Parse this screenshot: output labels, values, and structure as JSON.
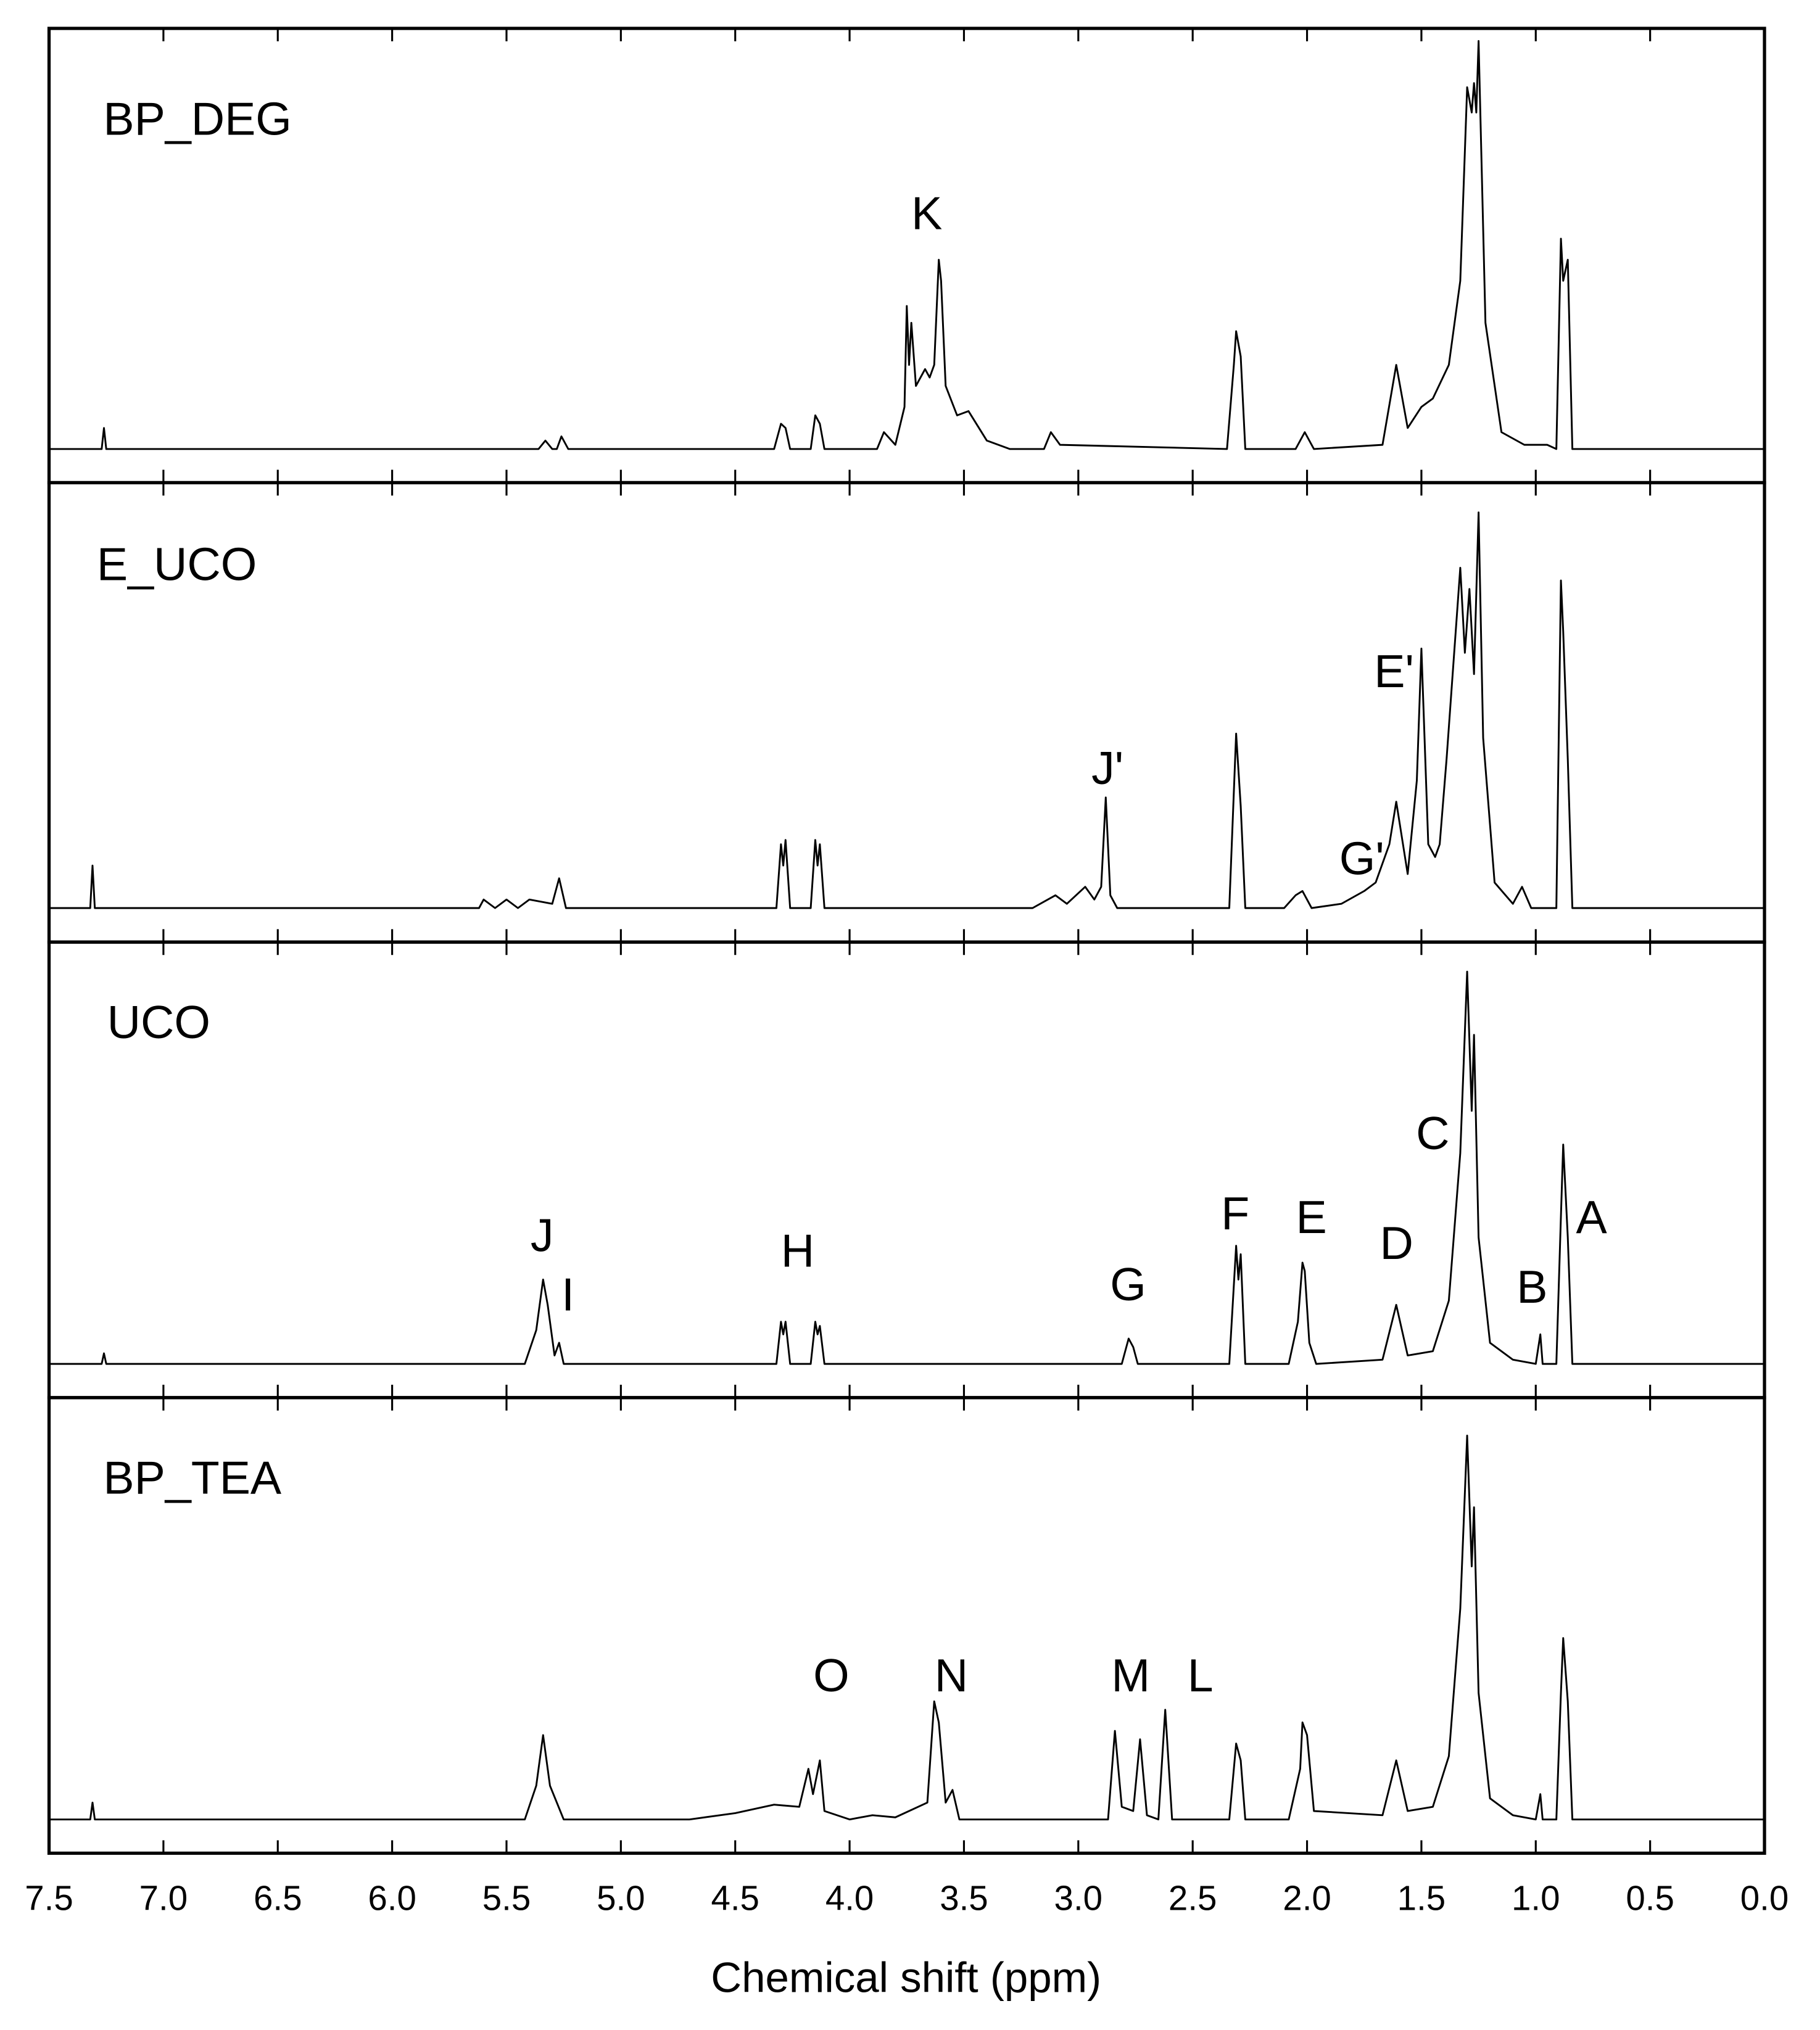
{
  "chart_data": [
    {
      "type": "line",
      "title": "BP_DEG",
      "annotations": [
        "K"
      ],
      "color": "#000000",
      "xlim": [
        7.5,
        0
      ],
      "ylim": [
        -8,
        100
      ],
      "x": [
        7.5,
        7.27,
        7.26,
        7.25,
        5.36,
        5.33,
        5.3,
        5.28,
        5.26,
        5.23,
        4.33,
        4.3,
        4.28,
        4.26,
        4.17,
        4.15,
        4.13,
        4.11,
        3.88,
        3.85,
        3.8,
        3.76,
        3.75,
        3.74,
        3.73,
        3.71,
        3.67,
        3.65,
        3.63,
        3.61,
        3.6,
        3.58,
        3.53,
        3.48,
        3.4,
        3.3,
        3.15,
        3.12,
        3.08,
        2.35,
        2.32,
        2.31,
        2.29,
        2.27,
        2.05,
        2.01,
        1.97,
        1.67,
        1.61,
        1.56,
        1.5,
        1.45,
        1.38,
        1.33,
        1.3,
        1.28,
        1.27,
        1.26,
        1.25,
        1.22,
        1.15,
        1.05,
        0.95,
        0.91,
        0.89,
        0.88,
        0.86,
        0.84,
        0
      ],
      "values": [
        0,
        0,
        5,
        0,
        0,
        2,
        0,
        0,
        3,
        0,
        0,
        6,
        5,
        0,
        0,
        8,
        6,
        0,
        0,
        4,
        1,
        10,
        34,
        20,
        30,
        15,
        19,
        17,
        20,
        45,
        40,
        15,
        8,
        9,
        2,
        0,
        0,
        4,
        1,
        0,
        20,
        28,
        22,
        0,
        0,
        4,
        0,
        1,
        20,
        5,
        10,
        12,
        20,
        40,
        86,
        80,
        87,
        80,
        97,
        30,
        4,
        1,
        1,
        0,
        50,
        40,
        45,
        0,
        0
      ]
    },
    {
      "type": "line",
      "title": "E_UCO",
      "annotations": [
        "J'",
        "G'",
        "E'"
      ],
      "color": "#000000",
      "xlim": [
        7.5,
        0
      ],
      "ylim": [
        -8,
        100
      ],
      "x": [
        7.5,
        7.32,
        7.31,
        7.3,
        5.62,
        5.6,
        5.55,
        5.5,
        5.45,
        5.4,
        5.3,
        5.27,
        5.24,
        4.32,
        4.3,
        4.29,
        4.28,
        4.26,
        4.17,
        4.15,
        4.14,
        4.13,
        4.11,
        3.2,
        3.1,
        3.05,
        2.97,
        2.93,
        2.9,
        2.88,
        2.86,
        2.83,
        2.34,
        2.31,
        2.29,
        2.27,
        2.1,
        2.05,
        2.02,
        1.98,
        1.85,
        1.75,
        1.7,
        1.64,
        1.61,
        1.56,
        1.52,
        1.5,
        1.47,
        1.44,
        1.42,
        1.39,
        1.33,
        1.31,
        1.29,
        1.27,
        1.25,
        1.23,
        1.18,
        1.1,
        1.06,
        1.02,
        0.91,
        0.89,
        0.88,
        0.86,
        0.84,
        0.6,
        0
      ],
      "values": [
        0,
        0,
        10,
        0,
        0,
        2,
        0,
        2,
        0,
        2,
        1,
        7,
        0,
        0,
        15,
        10,
        16,
        0,
        0,
        16,
        10,
        15,
        0,
        0,
        3,
        1,
        5,
        2,
        5,
        26,
        3,
        0,
        0,
        41,
        24,
        0,
        0,
        3,
        4,
        0,
        1,
        4,
        6,
        15,
        25,
        8,
        30,
        61,
        15,
        12,
        15,
        35,
        80,
        60,
        75,
        55,
        93,
        40,
        6,
        1,
        5,
        0,
        0,
        77,
        65,
        35,
        0,
        0,
        0
      ]
    },
    {
      "type": "line",
      "title": "UCO",
      "annotations": [
        "J",
        "I",
        "H",
        "G",
        "F",
        "E",
        "D",
        "C",
        "B",
        "A"
      ],
      "color": "#000000",
      "xlim": [
        7.5,
        0
      ],
      "ylim": [
        -8,
        100
      ],
      "x": [
        7.5,
        7.27,
        7.26,
        7.25,
        5.42,
        5.37,
        5.34,
        5.32,
        5.29,
        5.27,
        5.25,
        4.32,
        4.3,
        4.29,
        4.28,
        4.26,
        4.17,
        4.15,
        4.14,
        4.13,
        4.11,
        2.81,
        2.79,
        2.78,
        2.76,
        2.74,
        2.34,
        2.31,
        2.3,
        2.29,
        2.27,
        2.08,
        2.04,
        2.02,
        2.01,
        1.99,
        1.96,
        1.67,
        1.61,
        1.56,
        1.45,
        1.38,
        1.33,
        1.3,
        1.28,
        1.27,
        1.25,
        1.2,
        1.1,
        1.0,
        0.98,
        0.97,
        0.91,
        0.89,
        0.88,
        0.86,
        0.84,
        0
      ],
      "values": [
        0,
        0,
        2.5,
        0,
        0,
        8,
        20,
        14,
        2,
        5,
        0,
        0,
        10,
        7,
        10,
        0,
        0,
        10,
        7,
        9,
        0,
        0,
        4,
        6,
        4,
        0,
        0,
        28,
        20,
        26,
        0,
        0,
        10,
        24,
        22,
        5,
        0,
        1,
        14,
        2,
        3,
        15,
        50,
        93,
        60,
        78,
        30,
        5,
        1,
        0,
        7,
        0,
        0,
        35,
        52,
        30,
        0,
        0
      ]
    },
    {
      "type": "line",
      "title": "BP_TEA",
      "annotations": [
        "O",
        "N",
        "M",
        "L"
      ],
      "color": "#000000",
      "xlim": [
        7.5,
        0
      ],
      "ylim": [
        -8,
        100
      ],
      "xlabel": "Chemical shift (ppm)",
      "xticks": [
        7.5,
        {
          "value": 7,
          "label": "7.0"
        },
        6.5,
        {
          "value": 6,
          "label": "6.0"
        },
        5.5,
        {
          "value": 5,
          "label": "5.0"
        },
        4.5,
        {
          "value": 4,
          "label": "4.0"
        },
        3.5,
        {
          "value": 3,
          "label": "3.0"
        },
        2.5,
        {
          "value": 2,
          "label": "2.0"
        },
        1.5,
        {
          "value": 1,
          "label": "1.0"
        },
        0.5,
        {
          "value": 0,
          "label": "0.0"
        }
      ],
      "x": [
        7.5,
        7.32,
        7.31,
        7.3,
        5.42,
        5.37,
        5.34,
        5.31,
        5.25,
        4.7,
        4.5,
        4.33,
        4.22,
        4.18,
        4.16,
        4.13,
        4.11,
        4.0,
        3.9,
        3.8,
        3.66,
        3.63,
        3.61,
        3.58,
        3.55,
        3.52,
        2.87,
        2.84,
        2.81,
        2.76,
        2.73,
        2.7,
        2.65,
        2.62,
        2.59,
        2.34,
        2.31,
        2.29,
        2.27,
        2.08,
        2.03,
        2.02,
        2.0,
        1.97,
        1.67,
        1.61,
        1.56,
        1.45,
        1.38,
        1.33,
        1.3,
        1.28,
        1.27,
        1.25,
        1.2,
        1.1,
        1.0,
        0.98,
        0.97,
        0.91,
        0.89,
        0.88,
        0.86,
        0.84,
        0
      ],
      "values": [
        0,
        0,
        4,
        0,
        0,
        8,
        20,
        8,
        0,
        0,
        1.5,
        3.5,
        3,
        12,
        6,
        14,
        2,
        0,
        1,
        0.5,
        4,
        28,
        23,
        4,
        7,
        0,
        0,
        21,
        3,
        2,
        19,
        1,
        0,
        26,
        0,
        0,
        18,
        14,
        0,
        0,
        12,
        23,
        20,
        2,
        1,
        14,
        2,
        3,
        15,
        50,
        91,
        60,
        74,
        30,
        5,
        1,
        0,
        6,
        0,
        0,
        30,
        43,
        28,
        0,
        0
      ]
    }
  ]
}
